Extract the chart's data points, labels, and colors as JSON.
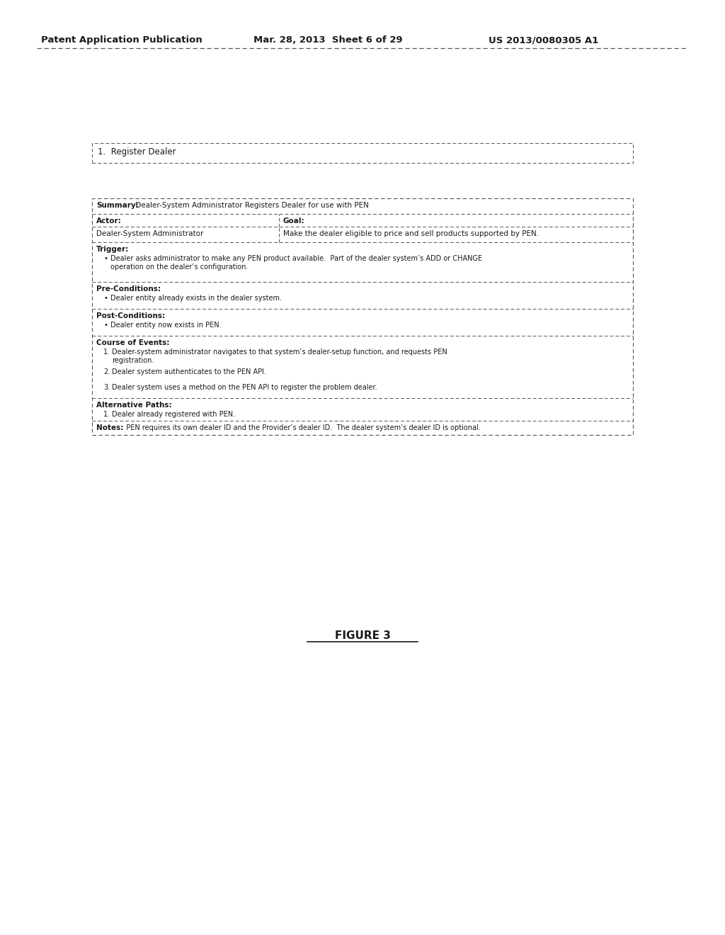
{
  "bg_color": "#ffffff",
  "header_left": "Patent Application Publication",
  "header_center": "Mar. 28, 2013  Sheet 6 of 29",
  "header_right": "US 2013/0080305 A1",
  "section_title": "1.  Register Dealer",
  "summary_label": "Summary:",
  "summary_text": " Dealer-System Administrator Registers Dealer for use with PEN",
  "actor_label": "Actor:",
  "goal_label": "Goal:",
  "actor_value": "Dealer-System Administrator",
  "goal_value": "Make the dealer eligible to price and sell products supported by PEN.",
  "trigger_label": "Trigger:",
  "trigger_bullet": "Dealer asks administrator to make any PEN product available.  Part of the dealer system’s ADD or CHANGE\noperation on the dealer’s configuration.",
  "preconditions_label": "Pre-Conditions:",
  "preconditions_bullet": "Dealer entity already exists in the dealer system.",
  "postconditions_label": "Post-Conditions:",
  "postconditions_bullet": "Dealer entity now exists in PEN.",
  "course_label": "Course of Events:",
  "course_items": [
    "Dealer-system administrator navigates to that system’s dealer-setup function, and requests PEN\nregistration.",
    "Dealer system authenticates to the PEN API.",
    "Dealer system uses a method on the PEN API to register the problem dealer."
  ],
  "altpaths_label": "Alternative Paths:",
  "altpaths_items": [
    "Dealer already registered with PEN."
  ],
  "notes_label": "Notes:",
  "notes_text": "  PEN requires its own dealer ID and the Provider’s dealer ID.  The dealer system’s dealer ID is optional.",
  "figure_label": "FIGURE 3",
  "line_color": "#555555",
  "text_color": "#1a1a1a"
}
